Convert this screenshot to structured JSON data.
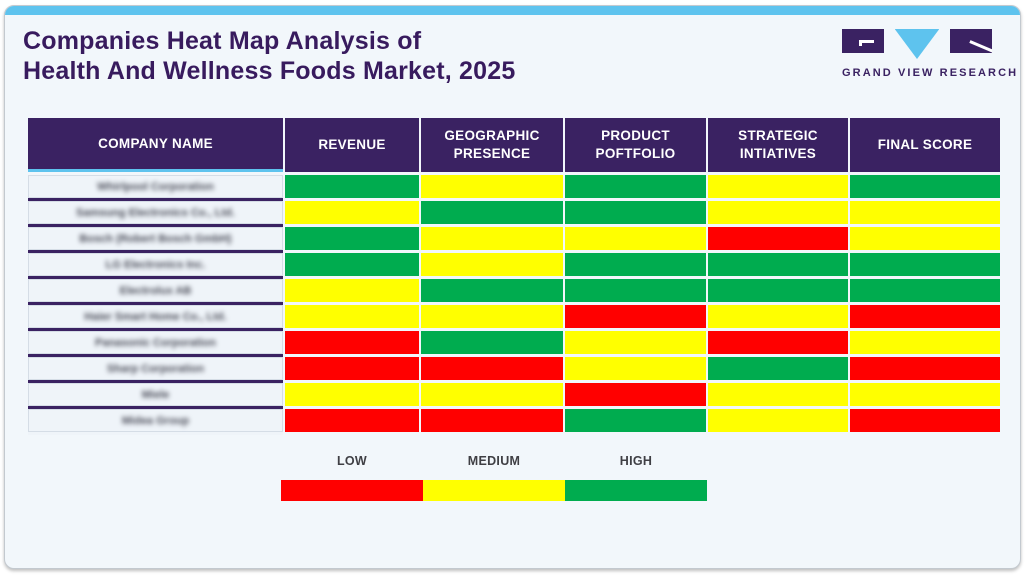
{
  "page": {
    "title_line1": "Companies Heat Map Analysis of",
    "title_line2": "Health And Wellness Foods Market, 2025"
  },
  "logo": {
    "text": "GRAND VIEW RESEARCH"
  },
  "colors": {
    "low": "#FF0000",
    "medium": "#FFFF00",
    "high": "#00AC4F",
    "header_bg": "#3A2262",
    "accent_blue": "#5EC3EE",
    "title_purple": "#381B5E"
  },
  "chart_data": {
    "type": "heatmap",
    "title": "Companies Heat Map Analysis of Health And Wellness Foods Market, 2025",
    "columns": [
      "COMPANY NAME",
      "REVENUE",
      "GEOGRAPHIC PRESENCE",
      "PRODUCT POFTFOLIO",
      "STRATEGIC INTIATIVES",
      "FINAL SCORE"
    ],
    "levels": {
      "low": "LOW",
      "medium": "MEDIUM",
      "high": "HIGH"
    },
    "rows": [
      {
        "company": "Whirlpool Corporation",
        "values": [
          "high",
          "medium",
          "high",
          "medium",
          "high"
        ]
      },
      {
        "company": "Samsung Electronics Co., Ltd.",
        "values": [
          "medium",
          "high",
          "high",
          "medium",
          "medium"
        ]
      },
      {
        "company": "Bosch (Robert Bosch GmbH)",
        "values": [
          "high",
          "medium",
          "medium",
          "low",
          "medium"
        ]
      },
      {
        "company": "LG Electronics Inc.",
        "values": [
          "high",
          "medium",
          "high",
          "high",
          "high"
        ]
      },
      {
        "company": "Electrolux AB",
        "values": [
          "medium",
          "high",
          "high",
          "high",
          "high"
        ]
      },
      {
        "company": "Haier Smart Home Co., Ltd.",
        "values": [
          "medium",
          "medium",
          "low",
          "medium",
          "low"
        ]
      },
      {
        "company": "Panasonic Corporation",
        "values": [
          "low",
          "high",
          "medium",
          "low",
          "medium"
        ]
      },
      {
        "company": "Sharp Corporation",
        "values": [
          "low",
          "low",
          "medium",
          "high",
          "low"
        ]
      },
      {
        "company": "Miele",
        "values": [
          "medium",
          "medium",
          "low",
          "medium",
          "medium"
        ]
      },
      {
        "company": "Midea Group",
        "values": [
          "low",
          "low",
          "high",
          "medium",
          "low"
        ]
      }
    ],
    "legend": [
      {
        "label": "LOW",
        "level": "low"
      },
      {
        "label": "MEDIUM",
        "level": "medium"
      },
      {
        "label": "HIGH",
        "level": "high"
      }
    ]
  }
}
